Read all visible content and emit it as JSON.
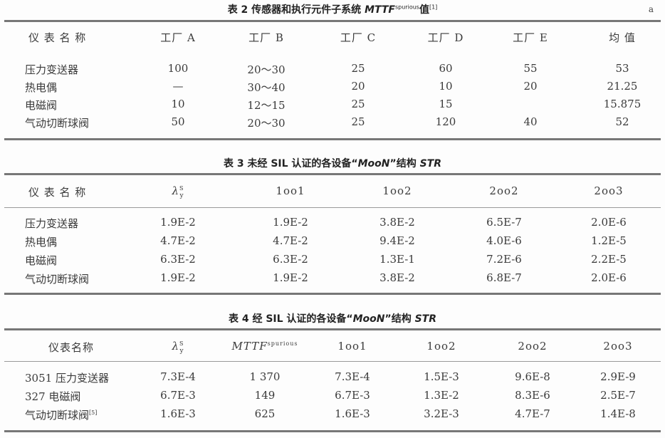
{
  "table2": {
    "title_prefix": "表 2   传感器和执行元件子系统 ",
    "title_italic": "MTTF",
    "title_sup": "spurious",
    "title_suffix": "值",
    "title_ref": "[1]",
    "unit": "a",
    "headers": [
      "仪 表 名 称",
      "工厂 A",
      "工厂 B",
      "工厂 C",
      "工厂 D",
      "工厂 E",
      "均  值"
    ],
    "rows": [
      [
        "压力变送器",
        "100",
        "20～30",
        "25",
        "60",
        "55",
        "53"
      ],
      [
        "热电偶",
        "—",
        "30～40",
        "20",
        "10",
        "20",
        "21.25"
      ],
      [
        "电磁阀",
        "10",
        "12～15",
        "25",
        "15",
        "",
        "15.875"
      ],
      [
        "气动切断球阀",
        "50",
        "20～30",
        "25",
        "120",
        "40",
        "52"
      ]
    ]
  },
  "table3": {
    "title_prefix": "表 3   未经 SIL 认证的各设备“",
    "title_italic": "MooN",
    "title_mid": "”结构 ",
    "title_italic2": "STR",
    "headers": [
      "仪 表 名 称",
      "λ",
      "1oo1",
      "1oo2",
      "2oo2",
      "2oo3"
    ],
    "lambda_sup": "S",
    "lambda_sub": "y",
    "rows": [
      [
        "压力变送器",
        "1.9E-2",
        "1.9E-2",
        "3.8E-2",
        "6.5E-7",
        "2.0E-6"
      ],
      [
        "热电偶",
        "4.7E-2",
        "4.7E-2",
        "9.4E-2",
        "4.0E-6",
        "1.2E-5"
      ],
      [
        "电磁阀",
        "6.3E-2",
        "6.3E-2",
        "1.3E-1",
        "7.2E-6",
        "2.2E-5"
      ],
      [
        "气动切断球阀",
        "1.9E-2",
        "1.9E-2",
        "3.8E-2",
        "6.8E-7",
        "2.0E-6"
      ]
    ]
  },
  "table4": {
    "title_prefix": "表 4   经 SIL 认证的各设备“",
    "title_italic": "MooN",
    "title_mid": "”结构 ",
    "title_italic2": "STR",
    "headers": [
      "仪表名称",
      "λ",
      "MTTF",
      "1oo1",
      "1oo2",
      "2oo2",
      "2oo3"
    ],
    "lambda_sup": "S",
    "lambda_sub": "y",
    "mttf_sup": "spurious",
    "rows": [
      [
        "3051 压力变送器",
        "7.3E-4",
        "1 370",
        "7.3E-4",
        "1.5E-3",
        "9.6E-8",
        "2.9E-9"
      ],
      [
        "327 电磁阀",
        "6.7E-3",
        "149",
        "6.7E-3",
        "1.3E-2",
        "8.3E-6",
        "2.5E-7"
      ],
      [
        "气动切断球阀",
        "1.6E-3",
        "625",
        "1.6E-3",
        "3.2E-3",
        "4.7E-7",
        "1.4E-8"
      ]
    ],
    "row_ref": "[5]"
  }
}
